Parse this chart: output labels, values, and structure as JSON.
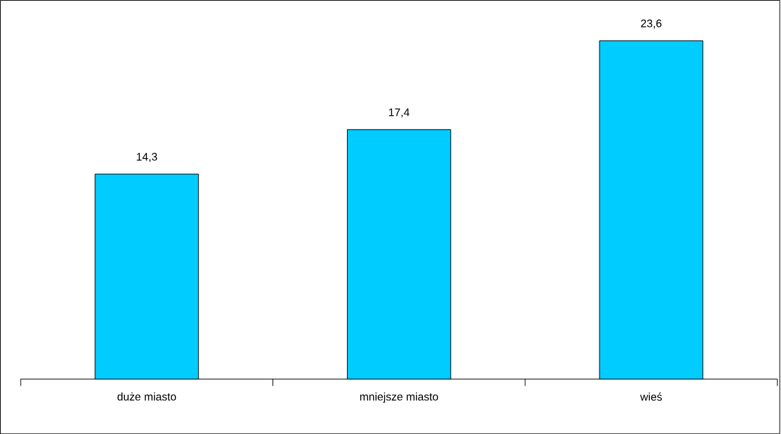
{
  "chart_data": {
    "type": "bar",
    "categories": [
      "duże miasto",
      "mniejsze miasto",
      "wieś"
    ],
    "values": [
      14.3,
      17.4,
      23.6
    ],
    "value_labels": [
      "14,3",
      "17,4",
      "23,6"
    ],
    "color": "#00ccff"
  }
}
